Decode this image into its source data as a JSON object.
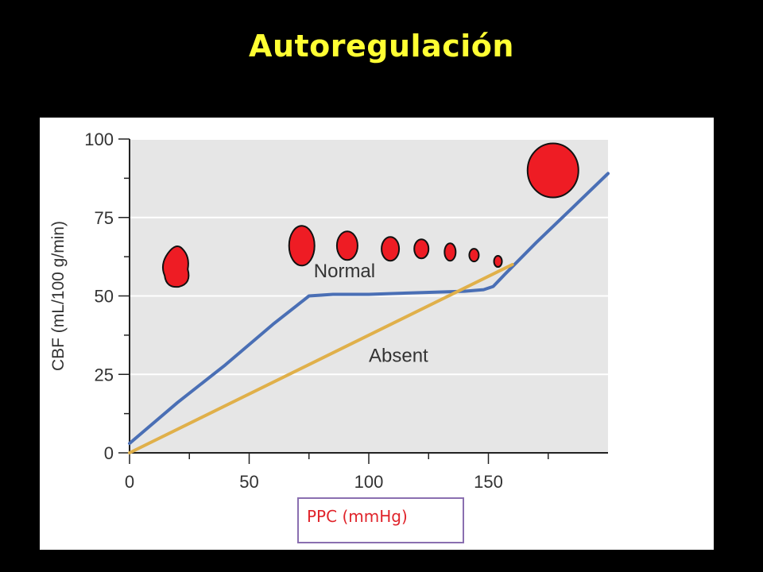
{
  "slide": {
    "title": "Autoregulación",
    "colors": {
      "background": "#000000",
      "title": "#ffff33",
      "plot_area": "#e6e6e6",
      "normal_curve": "#4a6fb5",
      "absent_curve": "#e0b04a",
      "vessel": "#ee1c24",
      "ppc_box_border": "#8a6fb0",
      "ppc_text": "#e0242b"
    }
  },
  "chart_data": {
    "type": "line",
    "title": "",
    "xlabel": "PPC (mmHg)",
    "ylabel": "CBF (mL/100 g/min)",
    "xlim": [
      0,
      200
    ],
    "ylim": [
      0,
      100
    ],
    "x_ticks": [
      0,
      50,
      100,
      150
    ],
    "y_ticks": [
      0,
      25,
      50,
      75,
      100
    ],
    "grid": "horizontal",
    "series": [
      {
        "name": "Normal",
        "color": "#4a6fb5",
        "x": [
          0,
          20,
          40,
          60,
          70,
          75,
          85,
          100,
          120,
          140,
          148,
          152,
          157,
          170,
          185,
          200
        ],
        "y": [
          3,
          16,
          28,
          41,
          47,
          50,
          50.5,
          50.5,
          51,
          51.5,
          52,
          53,
          57,
          67,
          78,
          89
        ]
      },
      {
        "name": "Absent",
        "color": "#e0b04a",
        "x": [
          0,
          160
        ],
        "y": [
          0,
          60
        ]
      }
    ],
    "annotations": [
      {
        "text": "Normal",
        "x": 77,
        "y": 56
      },
      {
        "text": "Absent",
        "x": 100,
        "y": 29
      }
    ],
    "vessel_markers": [
      {
        "x": 20,
        "y": 59,
        "size": "medium-large",
        "shape": "irregular"
      },
      {
        "x": 72,
        "y": 66,
        "size": "large"
      },
      {
        "x": 91,
        "y": 66,
        "size": "medium-large"
      },
      {
        "x": 109,
        "y": 65,
        "size": "medium"
      },
      {
        "x": 122,
        "y": 65,
        "size": "small-medium"
      },
      {
        "x": 134,
        "y": 64,
        "size": "small"
      },
      {
        "x": 144,
        "y": 63,
        "size": "very-small"
      },
      {
        "x": 154,
        "y": 61,
        "size": "tiny"
      },
      {
        "x": 177,
        "y": 90,
        "size": "very-large"
      }
    ]
  }
}
